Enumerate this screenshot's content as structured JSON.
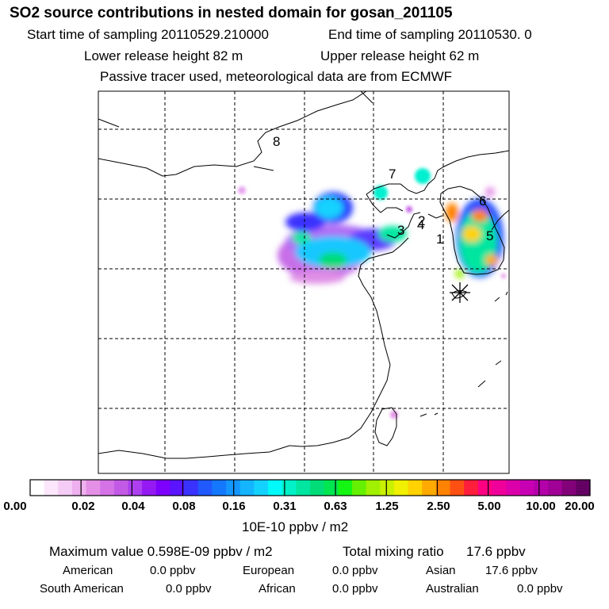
{
  "header": {
    "title": "SO2 source contributions in nested domain for gosan_201105",
    "start_time": "Start time of sampling 20110529.210000",
    "end_time": "End time of sampling 20110530.     0",
    "lower_release": "Lower release height   82 m",
    "upper_release": "Upper release height   62 m",
    "tracer_note": "Passive tracer used, meteorological data are from ECMWF"
  },
  "map": {
    "source_labels": [
      {
        "id": "1",
        "text": "1"
      },
      {
        "id": "2",
        "text": "2"
      },
      {
        "id": "3",
        "text": "3"
      },
      {
        "id": "4",
        "text": "4"
      },
      {
        "id": "5",
        "text": "5"
      },
      {
        "id": "6",
        "text": "6"
      },
      {
        "id": "7",
        "text": "7"
      },
      {
        "id": "8",
        "text": "8"
      }
    ],
    "receptor_marker": "asterisk-icon"
  },
  "colorbar": {
    "colors": [
      "#ffffff",
      "#fbe6fb",
      "#f5ccf5",
      "#efb0ef",
      "#e390e6",
      "#d472e6",
      "#c25ae6",
      "#ad3ff0",
      "#9419f3",
      "#7d00ff",
      "#5a14ff",
      "#3a32ff",
      "#205aff",
      "#1478ff",
      "#1496ff",
      "#14b4ff",
      "#14d2ff",
      "#00fafa",
      "#00f0c8",
      "#00e6a0",
      "#00dc78",
      "#00e650",
      "#14f514",
      "#64f000",
      "#a0f000",
      "#c8f000",
      "#f0f000",
      "#ffd200",
      "#ffaa00",
      "#ff8200",
      "#ff5014",
      "#ff1e3c",
      "#ff0082",
      "#f0009b",
      "#dc00aa",
      "#c800b4",
      "#b400aa",
      "#a00096",
      "#820078",
      "#640064"
    ],
    "ticks": [
      "0.00",
      "0.02",
      "0.04",
      "0.08",
      "0.16",
      "0.31",
      "0.63",
      "1.25",
      "2.50",
      "5.00",
      "10.00",
      "20.00"
    ],
    "unit_label": "10E-10 ppbv / m2"
  },
  "stats": {
    "max_value": "Maximum value  0.598E-09 ppbv / m2",
    "total_mixing": "Total mixing ratio",
    "total_mixing_value": "17.6 ppbv"
  },
  "regions": {
    "american": "American",
    "american_value": "0.0 ppbv",
    "european": "European",
    "european_value": "0.0 ppbv",
    "asian": "Asian",
    "asian_value": "17.6 ppbv",
    "south_american": "South American",
    "south_american_value": "0.0 ppbv",
    "african": "African",
    "african_value": "0.0 ppbv",
    "australian": "Australian",
    "australian_value": "0.0 ppbv"
  }
}
